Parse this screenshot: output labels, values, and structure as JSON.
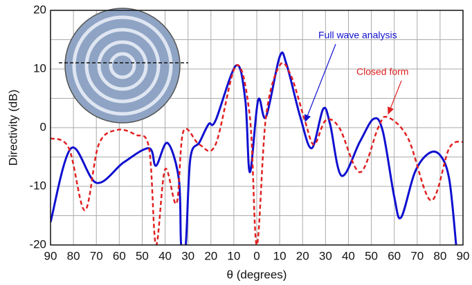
{
  "chart_data": {
    "type": "line",
    "xlabel": "θ (degrees)",
    "ylabel": "Directivity (dB)",
    "xlim": [
      -90,
      90
    ],
    "xticks": [
      {
        "value": -90,
        "label": "90"
      },
      {
        "value": -80,
        "label": "80"
      },
      {
        "value": -70,
        "label": "70"
      },
      {
        "value": -60,
        "label": "60"
      },
      {
        "value": -50,
        "label": "50"
      },
      {
        "value": -40,
        "label": "40"
      },
      {
        "value": -30,
        "label": "30"
      },
      {
        "value": -20,
        "label": "20"
      },
      {
        "value": -10,
        "label": "10"
      },
      0,
      10,
      20,
      30,
      40,
      50,
      60,
      70,
      80,
      90
    ],
    "ylim": [
      -20,
      20
    ],
    "yticks": [
      -20,
      -10,
      0,
      10,
      20
    ],
    "y_minor_grid": [
      -15,
      -5,
      5,
      15
    ],
    "grid": true,
    "series": [
      {
        "name": "Full wave analysis",
        "color": "#1010d0",
        "dash": "solid",
        "x": [
          -90,
          -81,
          -70,
          -58,
          -47,
          -44,
          -39,
          -34,
          -33,
          -31,
          -29,
          -25,
          -21,
          -18,
          -9,
          -5,
          -3,
          0.6,
          4,
          10,
          13,
          19,
          24,
          29,
          32,
          37,
          45,
          51,
          55,
          60,
          63,
          69,
          75,
          80,
          84,
          87
        ],
        "values": [
          -16.1,
          -3.5,
          -9.4,
          -5.9,
          -3.5,
          -6.5,
          -2.6,
          -8.8,
          -20,
          -20,
          -5.3,
          -2.5,
          0.6,
          1.2,
          10.6,
          4.7,
          -7.6,
          4.7,
          1.8,
          12.1,
          10.8,
          1.8,
          -3.5,
          3.2,
          0.6,
          -8.2,
          -2.4,
          1.5,
          -0.6,
          -11.8,
          -15.3,
          -7.6,
          -4.4,
          -4.7,
          -8.8,
          -20
        ]
      },
      {
        "name": "Closed form",
        "color": "#e02020",
        "dash": "dashed",
        "x": [
          -90,
          -82,
          -75,
          -69,
          -61,
          -53,
          -47,
          -44,
          -40,
          -35,
          -32,
          -25,
          -18,
          -9,
          -3,
          0,
          4,
          10,
          15,
          21,
          25,
          30,
          36,
          45,
          53,
          57,
          66,
          76,
          84,
          90
        ],
        "values": [
          -1.8,
          -3.5,
          -14.1,
          -2.9,
          -0.4,
          -1.2,
          -3.5,
          -20,
          -7.1,
          -12.9,
          -0.6,
          -2.9,
          -2.9,
          10.6,
          1.8,
          -20,
          1.8,
          10.6,
          8.8,
          1.2,
          -2.9,
          1.2,
          0,
          -7.6,
          0,
          1.8,
          -1.8,
          -12.4,
          -3.5,
          -2.4
        ]
      }
    ]
  }
}
